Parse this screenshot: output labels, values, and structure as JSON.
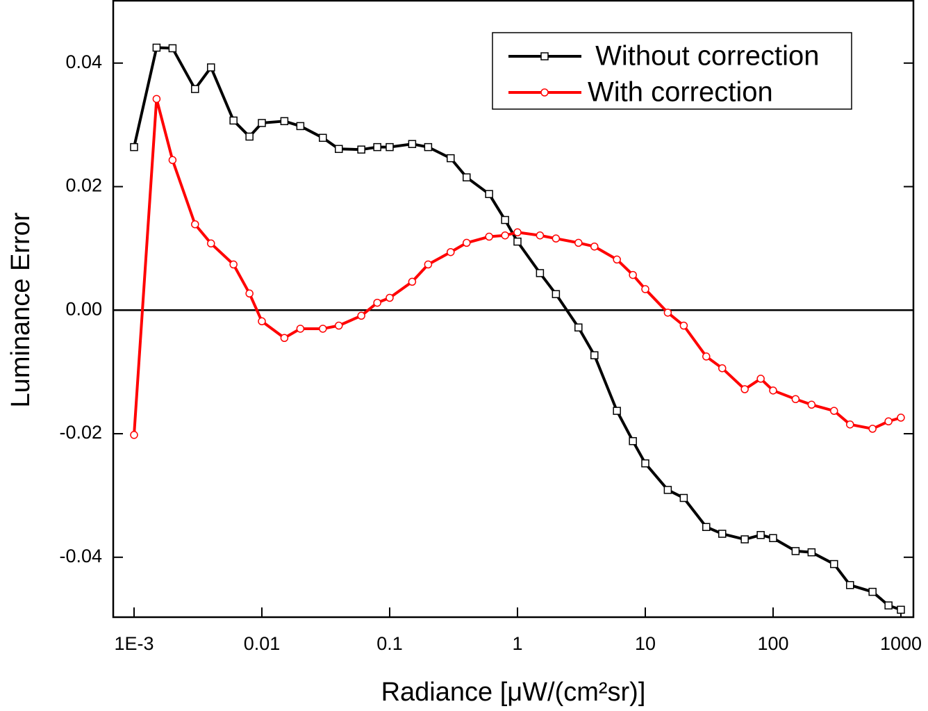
{
  "chart_data": {
    "type": "line",
    "xlabel": "Radiance [μW/(cm²sr)]",
    "ylabel": "Luminance Error",
    "xscale": "log",
    "xlim": [
      0.000687,
      1253
    ],
    "ylim": [
      -0.0497,
      0.0501
    ],
    "xticks": [
      {
        "value": 0.001,
        "label": "1E-3"
      },
      0.01,
      0.1,
      1,
      10,
      100,
      1000
    ],
    "yticks": [
      -0.04,
      -0.02,
      {
        "value": 0,
        "label": "0.00"
      },
      0.02,
      0.04
    ],
    "zero_line": true,
    "legend": "upper right",
    "x": [
      0.001,
      0.0015,
      0.002,
      0.003,
      0.004,
      0.006,
      0.008,
      0.01,
      0.015,
      0.02,
      0.03,
      0.04,
      0.06,
      0.08,
      0.1,
      0.15,
      0.2,
      0.3,
      0.4,
      0.6,
      0.8,
      1,
      1.5,
      2,
      3,
      4,
      6,
      8,
      10,
      15,
      20,
      30,
      40,
      60,
      80,
      100,
      150,
      200,
      300,
      400,
      600,
      800,
      1000
    ],
    "series": [
      {
        "name": " Without correction",
        "color": "#000000",
        "marker": "square",
        "values": [
          0.0264,
          0.0425,
          0.0424,
          0.0358,
          0.0393,
          0.0307,
          0.0281,
          0.0303,
          0.0306,
          0.0298,
          0.0279,
          0.0261,
          0.026,
          0.0264,
          0.0264,
          0.0269,
          0.0264,
          0.0246,
          0.0215,
          0.0188,
          0.0146,
          0.0111,
          0.006,
          0.0026,
          -0.0028,
          -0.0073,
          -0.0163,
          -0.0212,
          -0.0248,
          -0.0291,
          -0.0304,
          -0.0351,
          -0.0362,
          -0.0371,
          -0.0364,
          -0.0369,
          -0.039,
          -0.0392,
          -0.0411,
          -0.0445,
          -0.0456,
          -0.0478,
          -0.0485
        ]
      },
      {
        "name": "With correction",
        "color": "#ff0000",
        "marker": "circle",
        "values": [
          -0.0202,
          0.0342,
          0.0243,
          0.0139,
          0.0108,
          0.0074,
          0.0027,
          -0.0018,
          -0.0045,
          -0.003,
          -0.003,
          -0.0025,
          -0.0009,
          0.0012,
          0.002,
          0.0046,
          0.0074,
          0.0094,
          0.0109,
          0.0119,
          0.0121,
          0.0126,
          0.0121,
          0.0116,
          0.0109,
          0.0103,
          0.0082,
          0.0057,
          0.0034,
          -0.0004,
          -0.0025,
          -0.0075,
          -0.0094,
          -0.0128,
          -0.0111,
          -0.013,
          -0.0144,
          -0.0153,
          -0.0163,
          -0.0185,
          -0.0192,
          -0.018,
          -0.0174
        ]
      }
    ]
  }
}
